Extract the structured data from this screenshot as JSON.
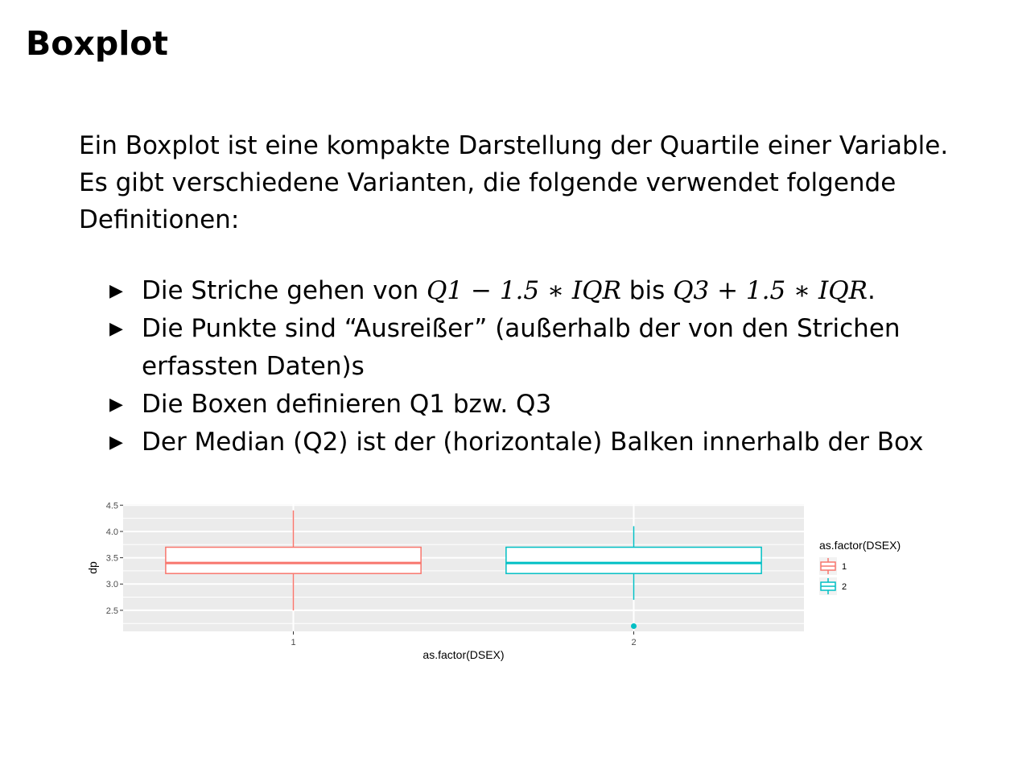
{
  "slide": {
    "title": "Boxplot",
    "intro": "Ein Boxplot ist eine kompakte Darstellung der Quartile einer Variable. Es gibt verschiedene Varianten, die folgende verwendet folgende Definitionen:",
    "bullets": [
      {
        "text_before": "Die Striche gehen von ",
        "math1": "Q1 − 1.5 ∗ IQR",
        "text_mid": " bis ",
        "math2": "Q3 + 1.5 ∗ IQR",
        "text_after": "."
      },
      {
        "text": "Die Punkte sind “Ausreißer” (außerhalb der von den Strichen erfassten Daten)s"
      },
      {
        "text": "Die Boxen definieren Q1 bzw. Q3"
      },
      {
        "text": "Der Median (Q2) ist der (horizontale) Balken innerhalb der Box"
      }
    ]
  },
  "chart_data": {
    "type": "boxplot",
    "xlabel": "as.factor(DSEX)",
    "ylabel": "dp",
    "ylim": [
      2.1,
      4.52
    ],
    "yticks": [
      2.5,
      3.0,
      3.5,
      4.0,
      4.5
    ],
    "ytick_labels": [
      "2.5",
      "3.0",
      "3.5",
      "4.0",
      "4.5"
    ],
    "grid": true,
    "legend": {
      "title": "as.factor(DSEX)",
      "placement": "right"
    },
    "categories": [
      "1",
      "2"
    ],
    "series": [
      {
        "name": "1",
        "color": "#F8766D",
        "whisker_low": 2.5,
        "q1": 3.2,
        "median": 3.4,
        "q3": 3.7,
        "whisker_high": 4.4,
        "outliers": []
      },
      {
        "name": "2",
        "color": "#00BFC4",
        "whisker_low": 2.7,
        "q1": 3.2,
        "median": 3.4,
        "q3": 3.7,
        "whisker_high": 4.1,
        "outliers": [
          2.2
        ]
      }
    ]
  }
}
